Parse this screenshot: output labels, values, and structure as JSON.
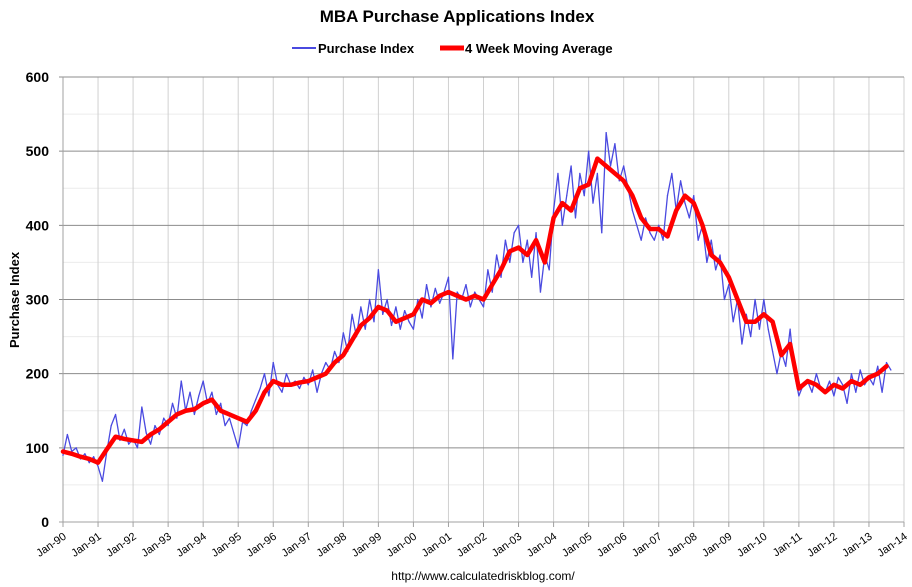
{
  "chart_data": {
    "type": "line",
    "title": "MBA Purchase Applications Index",
    "ylabel": "Purchase Index",
    "xlabel": "",
    "ylim": [
      0,
      600
    ],
    "yticks": [
      "0",
      "100",
      "200",
      "300",
      "400",
      "500",
      "600"
    ],
    "xticks": [
      "Jan-90",
      "Jan-91",
      "Jan-92",
      "Jan-93",
      "Jan-94",
      "Jan-95",
      "Jan-96",
      "Jan-97",
      "Jan-98",
      "Jan-99",
      "Jan-00",
      "Jan-01",
      "Jan-02",
      "Jan-03",
      "Jan-04",
      "Jan-05",
      "Jan-06",
      "Jan-07",
      "Jan-08",
      "Jan-09",
      "Jan-10",
      "Jan-11",
      "Jan-12",
      "Jan-13",
      "Jan-14"
    ],
    "xlim": [
      "Jan-90",
      "Jan-14"
    ],
    "grid": true,
    "legend_position": "top",
    "source": "http://www.calculatedriskblog.com/",
    "series": [
      {
        "name": "Purchase Index",
        "color": "#4a4ae0",
        "points_per_year": 8,
        "by_year": [
          {
            "year": 1990,
            "values": [
              90,
              118,
              95,
              100,
              85,
              92,
              80,
              88
            ]
          },
          {
            "year": 1991,
            "values": [
              75,
              55,
              95,
              130,
              145,
              110,
              125,
              105
            ]
          },
          {
            "year": 1992,
            "values": [
              112,
              100,
              155,
              120,
              105,
              130,
              118,
              140
            ]
          },
          {
            "year": 1993,
            "values": [
              130,
              160,
              140,
              190,
              150,
              175,
              145,
              170
            ]
          },
          {
            "year": 1994,
            "values": [
              190,
              160,
              175,
              145,
              160,
              130,
              140,
              120
            ]
          },
          {
            "year": 1995,
            "values": [
              100,
              135,
              130,
              150,
              165,
              180,
              200,
              170
            ]
          },
          {
            "year": 1996,
            "values": [
              215,
              185,
              175,
              200,
              185,
              190,
              180,
              195
            ]
          },
          {
            "year": 1997,
            "values": [
              185,
              205,
              175,
              200,
              215,
              205,
              230,
              215
            ]
          },
          {
            "year": 1998,
            "values": [
              255,
              230,
              280,
              250,
              290,
              260,
              300,
              270
            ]
          },
          {
            "year": 1999,
            "values": [
              340,
              280,
              300,
              265,
              290,
              260,
              285,
              270
            ]
          },
          {
            "year": 2000,
            "values": [
              260,
              300,
              275,
              320,
              290,
              315,
              295,
              310
            ]
          },
          {
            "year": 2001,
            "values": [
              330,
              220,
              310,
              300,
              320,
              290,
              310,
              300
            ]
          },
          {
            "year": 2002,
            "values": [
              290,
              340,
              310,
              360,
              330,
              380,
              350,
              390
            ]
          },
          {
            "year": 2003,
            "values": [
              400,
              350,
              380,
              330,
              390,
              310,
              360,
              340
            ]
          },
          {
            "year": 2004,
            "values": [
              420,
              470,
              400,
              440,
              480,
              410,
              470,
              440
            ]
          },
          {
            "year": 2005,
            "values": [
              500,
              430,
              470,
              390,
              525,
              480,
              510,
              460
            ]
          },
          {
            "year": 2006,
            "values": [
              480,
              450,
              420,
              400,
              380,
              410,
              390,
              380
            ]
          },
          {
            "year": 2007,
            "values": [
              400,
              380,
              440,
              470,
              420,
              460,
              430,
              410
            ]
          },
          {
            "year": 2008,
            "values": [
              440,
              380,
              400,
              350,
              380,
              340,
              360,
              300
            ]
          },
          {
            "year": 2009,
            "values": [
              320,
              270,
              300,
              240,
              280,
              250,
              300,
              260
            ]
          },
          {
            "year": 2010,
            "values": [
              300,
              260,
              230,
              200,
              230,
              210,
              260,
              200
            ]
          },
          {
            "year": 2011,
            "values": [
              170,
              185,
              190,
              175,
              200,
              180,
              175,
              190
            ]
          },
          {
            "year": 2012,
            "values": [
              170,
              195,
              185,
              160,
              200,
              175,
              205,
              185
            ]
          },
          {
            "year": 2013,
            "values": [
              195,
              185,
              210,
              175,
              215,
              205
            ]
          }
        ]
      },
      {
        "name": "4 Week Moving Average",
        "color": "#ff0000",
        "points_per_year": 4,
        "by_year": [
          {
            "year": 1990,
            "values": [
              95,
              92,
              88,
              85
            ]
          },
          {
            "year": 1991,
            "values": [
              80,
              98,
              115,
              112
            ]
          },
          {
            "year": 1992,
            "values": [
              110,
              108,
              118,
              125
            ]
          },
          {
            "year": 1993,
            "values": [
              135,
              145,
              150,
              152
            ]
          },
          {
            "year": 1994,
            "values": [
              160,
              165,
              150,
              145
            ]
          },
          {
            "year": 1995,
            "values": [
              140,
              135,
              150,
              175
            ]
          },
          {
            "year": 1996,
            "values": [
              190,
              185,
              185,
              188
            ]
          },
          {
            "year": 1997,
            "values": [
              190,
              195,
              200,
              215
            ]
          },
          {
            "year": 1998,
            "values": [
              225,
              245,
              265,
              275
            ]
          },
          {
            "year": 1999,
            "values": [
              290,
              285,
              270,
              275
            ]
          },
          {
            "year": 2000,
            "values": [
              280,
              300,
              295,
              305
            ]
          },
          {
            "year": 2001,
            "values": [
              310,
              305,
              300,
              305
            ]
          },
          {
            "year": 2002,
            "values": [
              300,
              320,
              340,
              365
            ]
          },
          {
            "year": 2003,
            "values": [
              370,
              360,
              380,
              350
            ]
          },
          {
            "year": 2004,
            "values": [
              410,
              430,
              420,
              450
            ]
          },
          {
            "year": 2005,
            "values": [
              455,
              490,
              480,
              470
            ]
          },
          {
            "year": 2006,
            "values": [
              460,
              440,
              410,
              395
            ]
          },
          {
            "year": 2007,
            "values": [
              395,
              385,
              420,
              440
            ]
          },
          {
            "year": 2008,
            "values": [
              430,
              400,
              360,
              350
            ]
          },
          {
            "year": 2009,
            "values": [
              330,
              300,
              270,
              270
            ]
          },
          {
            "year": 2010,
            "values": [
              280,
              270,
              225,
              240
            ]
          },
          {
            "year": 2011,
            "values": [
              180,
              190,
              185,
              175
            ]
          },
          {
            "year": 2012,
            "values": [
              185,
              180,
              190,
              185
            ]
          },
          {
            "year": 2013,
            "values": [
              195,
              200,
              210
            ]
          }
        ]
      }
    ]
  }
}
